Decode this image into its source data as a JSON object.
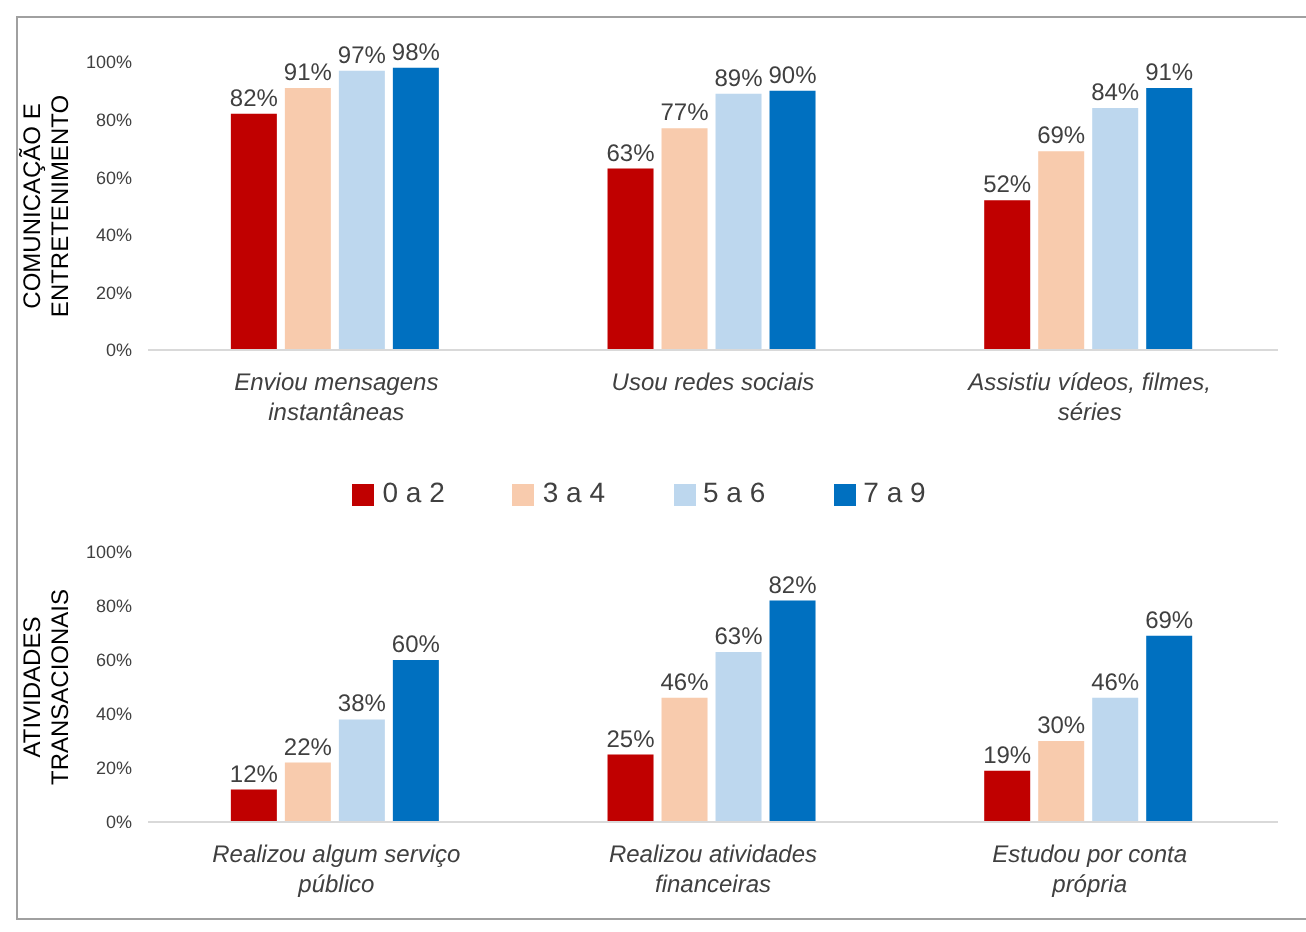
{
  "chart_data": [
    {
      "type": "bar",
      "ylabel": "COMUNICAÇÃO E ENTRETENIMENTO",
      "categories": [
        "Enviou mensagens instantâneas",
        "Usou redes sociais",
        "Assistiu vídeos, filmes, séries"
      ],
      "series": [
        {
          "name": "0 a 2",
          "color": "#c00000",
          "values": [
            82,
            63,
            52
          ],
          "value_labels": [
            "82%",
            "63%",
            "52%"
          ]
        },
        {
          "name": "3 a 4",
          "color": "#f8cbad",
          "values": [
            91,
            77,
            69
          ],
          "value_labels": [
            "91%",
            "77%",
            "69%"
          ]
        },
        {
          "name": "5 a 6",
          "color": "#bdd7ee",
          "values": [
            97,
            89,
            84
          ],
          "value_labels": [
            "97%",
            "89%",
            "84%"
          ]
        },
        {
          "name": "7 a 9",
          "color": "#0070c0",
          "values": [
            98,
            90,
            91
          ],
          "value_labels": [
            "98%",
            "90%",
            "91%"
          ]
        }
      ],
      "ylim": [
        0,
        100
      ],
      "yticks": [
        {
          "value": 0,
          "label": "0%"
        },
        {
          "value": 20,
          "label": "20%"
        },
        {
          "value": 40,
          "label": "40%"
        },
        {
          "value": 60,
          "label": "60%"
        },
        {
          "value": 80,
          "label": "80%"
        },
        {
          "value": 100,
          "label": "100%"
        }
      ],
      "grid": false,
      "legend": "bottom"
    },
    {
      "type": "bar",
      "ylabel": "ATIVIDADES TRANSACIONAIS",
      "categories": [
        "Realizou algum serviço público",
        "Realizou atividades financeiras",
        "Estudou por conta própria"
      ],
      "series": [
        {
          "color": "#c00000",
          "values": [
            12,
            25,
            19
          ],
          "value_labels": [
            "12%",
            "25%",
            "19%"
          ]
        },
        {
          "color": "#f8cbad",
          "values": [
            22,
            46,
            30
          ],
          "value_labels": [
            "22%",
            "46%",
            "30%"
          ]
        },
        {
          "color": "#bdd7ee",
          "values": [
            38,
            63,
            46
          ],
          "value_labels": [
            "38%",
            "63%",
            "46%"
          ]
        },
        {
          "color": "#0070c0",
          "values": [
            60,
            82,
            69
          ],
          "value_labels": [
            "60%",
            "82%",
            "69%"
          ]
        }
      ],
      "ylim": [
        0,
        100
      ],
      "yticks": [
        {
          "value": 0,
          "label": "0%"
        },
        {
          "value": 20,
          "label": "20%"
        },
        {
          "value": 40,
          "label": "40%"
        },
        {
          "value": 60,
          "label": "60%"
        },
        {
          "value": 80,
          "label": "80%"
        },
        {
          "value": 100,
          "label": "100%"
        }
      ],
      "grid": false
    }
  ]
}
